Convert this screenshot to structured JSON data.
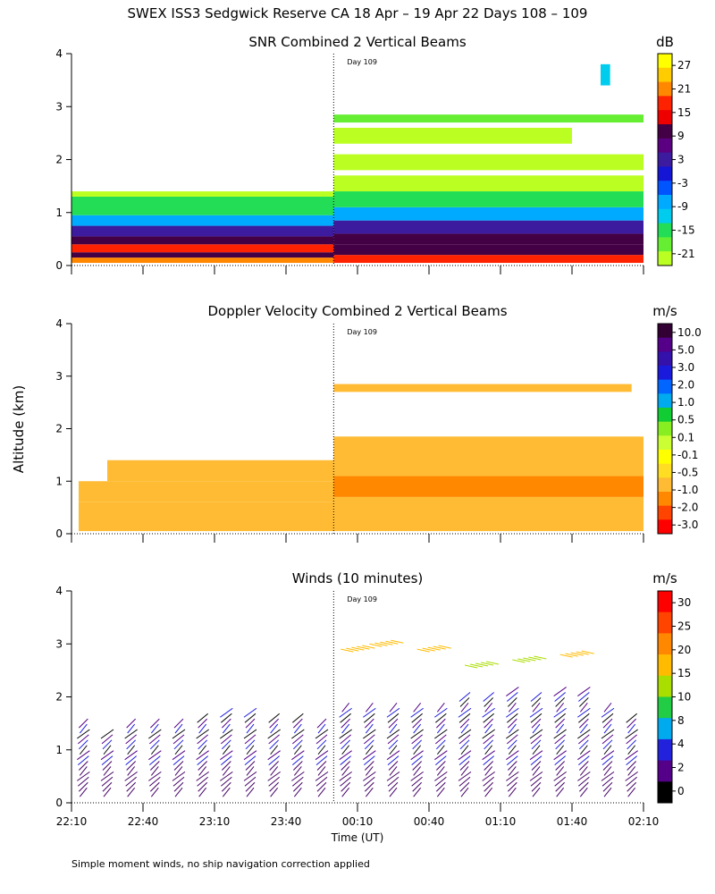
{
  "figure": {
    "title": "SWEX ISS3 Sedgwick Reserve CA  18 Apr – 19 Apr 22 Days 108 – 109",
    "ylabel": "Altitude (km)",
    "xlabel": "Time (UT)",
    "xticks": [
      "22:10",
      "22:40",
      "23:10",
      "23:40",
      "00:10",
      "00:40",
      "01:10",
      "01:40",
      "02:10"
    ],
    "xtick_minutes": [
      0,
      30,
      60,
      90,
      120,
      150,
      180,
      210,
      240
    ],
    "yticks": [
      "0",
      "1",
      "2",
      "3",
      "4"
    ],
    "day_marker": {
      "label": "Day 109",
      "minute": 110
    },
    "footnote": "Simple moment winds, no ship navigation correction applied"
  },
  "chart_data": [
    {
      "type": "heatmap",
      "title": "SNR Combined 2 Vertical Beams",
      "unit": "dB",
      "xlim_minutes": [
        0,
        240
      ],
      "ylim_km": [
        0,
        4
      ],
      "colorbar": {
        "labels": [
          "27",
          "21",
          "15",
          "9",
          "3",
          "-3",
          "-9",
          "-15",
          "-21"
        ],
        "colors": [
          "#ffff00",
          "#ffcc00",
          "#ff8800",
          "#ff2200",
          "#ee0000",
          "#440044",
          "#5a0080",
          "#3d1b9e",
          "#1515d5",
          "#0055ff",
          "#00aaff",
          "#00ccee",
          "#22dd55",
          "#66ee33",
          "#bbff22"
        ]
      },
      "layers": [
        {
          "t0": 0,
          "t1": 110,
          "z0": 0.05,
          "z1": 0.15,
          "value": 18
        },
        {
          "t0": 0,
          "t1": 110,
          "z0": 0.15,
          "z1": 0.25,
          "value": 9
        },
        {
          "t0": 0,
          "t1": 110,
          "z0": 0.25,
          "z1": 0.4,
          "value": 15
        },
        {
          "t0": 0,
          "t1": 110,
          "z0": 0.4,
          "z1": 0.55,
          "value": 9
        },
        {
          "t0": 0,
          "t1": 110,
          "z0": 0.55,
          "z1": 0.75,
          "value": 3
        },
        {
          "t0": 0,
          "t1": 110,
          "z0": 0.75,
          "z1": 0.95,
          "value": -6
        },
        {
          "t0": 0,
          "t1": 110,
          "z0": 0.95,
          "z1": 1.3,
          "value": -12
        },
        {
          "t0": 0,
          "t1": 110,
          "z0": 1.3,
          "z1": 1.4,
          "value": -18
        },
        {
          "t0": 110,
          "t1": 240,
          "z0": 0.05,
          "z1": 0.2,
          "value": 15
        },
        {
          "t0": 110,
          "t1": 240,
          "z0": 0.2,
          "z1": 0.4,
          "value": 9
        },
        {
          "t0": 110,
          "t1": 240,
          "z0": 0.4,
          "z1": 0.6,
          "value": 9
        },
        {
          "t0": 110,
          "t1": 240,
          "z0": 0.6,
          "z1": 0.85,
          "value": 3
        },
        {
          "t0": 110,
          "t1": 240,
          "z0": 0.85,
          "z1": 1.1,
          "value": -6
        },
        {
          "t0": 110,
          "t1": 240,
          "z0": 1.1,
          "z1": 1.4,
          "value": -12
        },
        {
          "t0": 110,
          "t1": 240,
          "z0": 1.4,
          "z1": 1.7,
          "value": -18
        },
        {
          "t0": 110,
          "t1": 240,
          "z0": 2.7,
          "z1": 2.85,
          "value": -15
        },
        {
          "t0": 110,
          "t1": 210,
          "z0": 2.3,
          "z1": 2.6,
          "value": -20
        },
        {
          "t0": 110,
          "t1": 240,
          "z0": 1.8,
          "z1": 2.1,
          "value": -20
        },
        {
          "t0": 222,
          "t1": 226,
          "z0": 3.4,
          "z1": 3.8,
          "value": -9
        }
      ]
    },
    {
      "type": "heatmap",
      "title": "Doppler Velocity Combined 2 Vertical Beams",
      "unit": "m/s",
      "xlim_minutes": [
        0,
        240
      ],
      "ylim_km": [
        0,
        4
      ],
      "colorbar": {
        "labels": [
          "10.0",
          "5.0",
          "3.0",
          "2.0",
          "1.0",
          "0.5",
          "0.1",
          "-0.1",
          "-0.5",
          "-1.0",
          "-2.0",
          "-3.0"
        ],
        "colors": [
          "#330033",
          "#550088",
          "#3311aa",
          "#1a1add",
          "#0066ff",
          "#00aaee",
          "#11cc33",
          "#88ee22",
          "#ccff33",
          "#ffff00",
          "#ffdd22",
          "#ffbb33",
          "#ff8800",
          "#ff4400",
          "#ff0000"
        ]
      },
      "layers": [
        {
          "t0": 3,
          "t1": 110,
          "z0": 0.05,
          "z1": 0.6,
          "value": -0.05
        },
        {
          "t0": 3,
          "t1": 110,
          "z0": 0.6,
          "z1": 1.0,
          "value": -0.3
        },
        {
          "t0": 15,
          "t1": 110,
          "z0": 1.0,
          "z1": 1.4,
          "value": -0.2
        },
        {
          "t0": 110,
          "t1": 240,
          "z0": 0.05,
          "z1": 0.7,
          "value": -0.1
        },
        {
          "t0": 110,
          "t1": 240,
          "z0": 0.7,
          "z1": 1.1,
          "value": -0.4
        },
        {
          "t0": 110,
          "t1": 240,
          "z0": 1.1,
          "z1": 1.6,
          "value": 0.0
        },
        {
          "t0": 110,
          "t1": 240,
          "z0": 1.6,
          "z1": 1.85,
          "value": 0.1
        },
        {
          "t0": 110,
          "t1": 235,
          "z0": 2.7,
          "z1": 2.85,
          "value": 0.05
        }
      ]
    },
    {
      "type": "scatter",
      "title": "Winds (10 minutes)",
      "unit": "m/s",
      "xlim_minutes": [
        0,
        240
      ],
      "ylim_km": [
        0,
        4
      ],
      "colorbar": {
        "labels": [
          "30",
          "25",
          "20",
          "15",
          "10",
          "8",
          "4",
          "2",
          "0"
        ],
        "colors": [
          "#ff0000",
          "#ff4400",
          "#ff8800",
          "#ffbb00",
          "#aadd00",
          "#22cc44",
          "#00aaee",
          "#2222dd",
          "#550088",
          "#000000"
        ]
      },
      "profiles_minutes": [
        5,
        15,
        25,
        35,
        45,
        55,
        65,
        75,
        85,
        95,
        105,
        115,
        125,
        135,
        145,
        155,
        165,
        175,
        185,
        195,
        205,
        215,
        225,
        235
      ],
      "profile_top_km": [
        1.5,
        1.4,
        1.5,
        1.5,
        1.5,
        1.6,
        1.7,
        1.7,
        1.6,
        1.6,
        1.5,
        1.9,
        1.9,
        1.8,
        1.9,
        1.8,
        2.0,
        2.0,
        2.1,
        2.0,
        2.1,
        2.1,
        1.8,
        1.6
      ],
      "upper_winds": [
        {
          "minute": 113,
          "alt_km": 2.9,
          "speed": 22
        },
        {
          "minute": 125,
          "alt_km": 3.0,
          "speed": 22
        },
        {
          "minute": 145,
          "alt_km": 2.9,
          "speed": 20
        },
        {
          "minute": 165,
          "alt_km": 2.6,
          "speed": 17
        },
        {
          "minute": 185,
          "alt_km": 2.7,
          "speed": 18
        },
        {
          "minute": 205,
          "alt_km": 2.8,
          "speed": 20
        }
      ]
    }
  ]
}
